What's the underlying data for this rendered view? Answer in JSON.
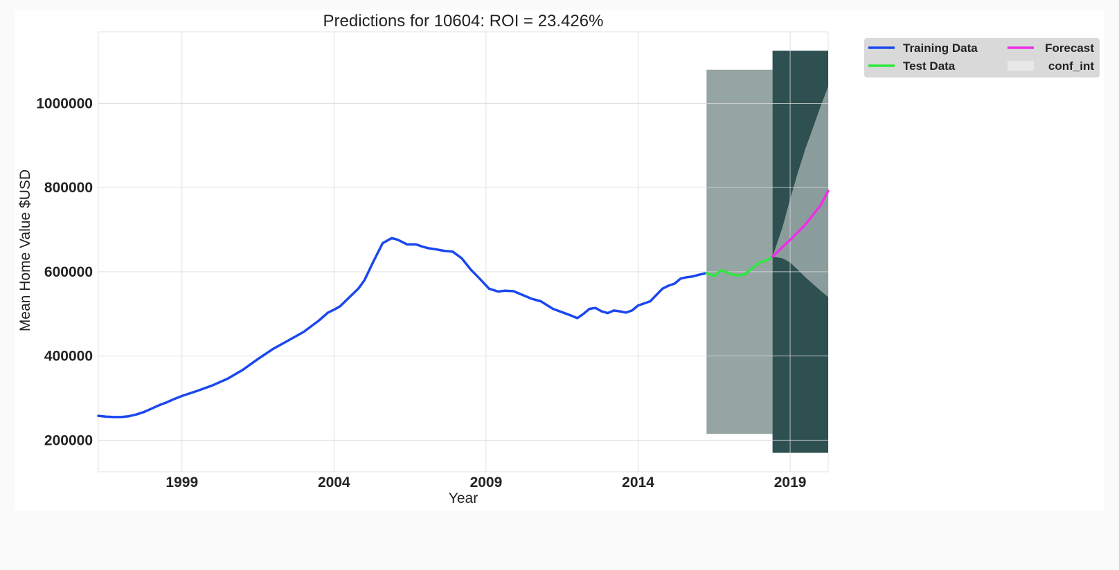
{
  "chart_data": {
    "type": "line",
    "title": "Predictions for 10604: ROI = 23.426%",
    "xlabel": "Year",
    "ylabel": "Mean Home Value $USD",
    "xlim": [
      1996.25,
      2020.25
    ],
    "ylim": [
      125000,
      1170000
    ],
    "x_ticks": [
      1999,
      2004,
      2009,
      2014,
      2019
    ],
    "x_tick_labels": [
      "1999",
      "2004",
      "2009",
      "2014",
      "2019"
    ],
    "y_ticks": [
      200000,
      400000,
      600000,
      800000,
      1000000
    ],
    "y_tick_labels": [
      "200000",
      "400000",
      "600000",
      "800000",
      "1000000"
    ],
    "grid": true,
    "legend_position": "outside-top-right",
    "legend_entries": [
      {
        "label": "Training Data",
        "color": "#1a47ee",
        "kind": "line"
      },
      {
        "label": "Forecast",
        "color": "#ee2ee8",
        "kind": "line"
      },
      {
        "label": "Test Data",
        "color": "#2ee83e",
        "kind": "line"
      },
      {
        "label": "conf_int",
        "color": "#e8e8e8",
        "kind": "patch"
      }
    ],
    "shaded_regions": [
      {
        "x": [
          2016.25,
          2018.42
        ],
        "y": [
          215000,
          1080000
        ],
        "color": "#95a5a4"
      },
      {
        "x": [
          2018.42,
          2020.25
        ],
        "y": [
          170000,
          1125000
        ],
        "color": "#2e5050"
      }
    ],
    "series": [
      {
        "name": "Training Data",
        "color": "#1a47ee",
        "x": [
          1996.25,
          1996.5,
          1996.75,
          1997.0,
          1997.25,
          1997.5,
          1997.75,
          1998.0,
          1998.25,
          1998.5,
          1998.75,
          1999.0,
          1999.5,
          2000.0,
          2000.5,
          2001.0,
          2001.5,
          2002.0,
          2002.5,
          2003.0,
          2003.5,
          2003.8,
          2004.0,
          2004.2,
          2004.5,
          2004.8,
          2005.0,
          2005.3,
          2005.6,
          2005.9,
          2006.1,
          2006.4,
          2006.7,
          2006.9,
          2007.1,
          2007.3,
          2007.6,
          2007.9,
          2008.2,
          2008.5,
          2008.8,
          2009.1,
          2009.4,
          2009.6,
          2009.9,
          2010.2,
          2010.5,
          2010.8,
          2011.0,
          2011.2,
          2011.5,
          2011.8,
          2012.0,
          2012.2,
          2012.4,
          2012.6,
          2012.8,
          2013.0,
          2013.2,
          2013.4,
          2013.6,
          2013.8,
          2014.0,
          2014.2,
          2014.4,
          2014.6,
          2014.8,
          2015.0,
          2015.2,
          2015.4,
          2015.6,
          2015.8,
          2016.0,
          2016.25
        ],
        "y": [
          258000,
          256000,
          255000,
          255000,
          257000,
          261000,
          267000,
          275000,
          283000,
          290000,
          298000,
          305000,
          317000,
          330000,
          346000,
          367000,
          393000,
          417000,
          437000,
          457000,
          484000,
          503000,
          510000,
          518000,
          539000,
          560000,
          580000,
          625000,
          668000,
          680000,
          676000,
          665000,
          665000,
          660000,
          656000,
          654000,
          650000,
          648000,
          632000,
          605000,
          583000,
          560000,
          553000,
          555000,
          554000,
          545000,
          536000,
          530000,
          521000,
          512000,
          504000,
          496000,
          490000,
          500000,
          512000,
          514000,
          506000,
          502000,
          508000,
          506000,
          503000,
          508000,
          520000,
          525000,
          530000,
          545000,
          560000,
          567000,
          572000,
          584000,
          587000,
          589000,
          593000,
          597000
        ]
      },
      {
        "name": "Test Data",
        "color": "#2ee83e",
        "x": [
          2016.25,
          2016.5,
          2016.75,
          2017.0,
          2017.25,
          2017.5,
          2017.75,
          2018.0,
          2018.25,
          2018.42
        ],
        "y": [
          597000,
          590000,
          604000,
          596000,
          591000,
          594000,
          608000,
          622000,
          628000,
          636000
        ]
      },
      {
        "name": "Forecast",
        "color": "#ee2ee8",
        "x": [
          2018.42,
          2019.0,
          2019.5,
          2020.0,
          2020.25
        ],
        "y": [
          636000,
          676000,
          712000,
          758000,
          792000
        ]
      }
    ],
    "confidence_interval": {
      "x": [
        2018.42,
        2018.75,
        2019.0,
        2019.25,
        2019.5,
        2019.75,
        2020.0,
        2020.25
      ],
      "lower": [
        636000,
        632000,
        622000,
        605000,
        587000,
        571000,
        555000,
        540000
      ],
      "upper": [
        636000,
        706000,
        773000,
        835000,
        892000,
        942000,
        993000,
        1040000
      ]
    }
  }
}
